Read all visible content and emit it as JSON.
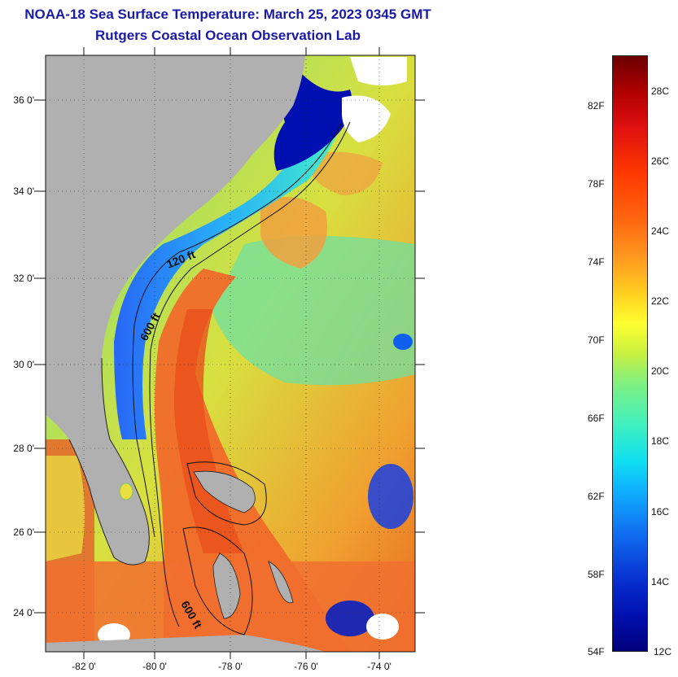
{
  "title": {
    "line1": "NOAA-18 Sea Surface Temperature:  March 25, 2023 0345 GMT",
    "line2": "Rutgers Coastal Ocean Observation Lab"
  },
  "map": {
    "lat_labels": [
      "36 0'",
      "34 0'",
      "32 0'",
      "30 0'",
      "28 0'",
      "26 0'",
      "24 0'"
    ],
    "lon_labels": [
      "-82 0'",
      "-80 0'",
      "-78 0'",
      "-76 0'",
      "-74 0'"
    ],
    "contour_labels": [
      "120 ft",
      "600 ft",
      "600 ft"
    ],
    "lat_range": [
      23,
      37.1
    ],
    "lon_range": [
      -83,
      -73.3
    ],
    "land_color": "#b0b0b0"
  },
  "colorbar": {
    "fahrenheit_labels": [
      "82F",
      "78F",
      "74F",
      "70F",
      "66F",
      "62F",
      "58F",
      "54F"
    ],
    "celsius_labels": [
      "28C",
      "26C",
      "24C",
      "22C",
      "20C",
      "18C",
      "16C",
      "14C",
      "12C"
    ],
    "range_celsius": [
      12,
      29
    ]
  }
}
